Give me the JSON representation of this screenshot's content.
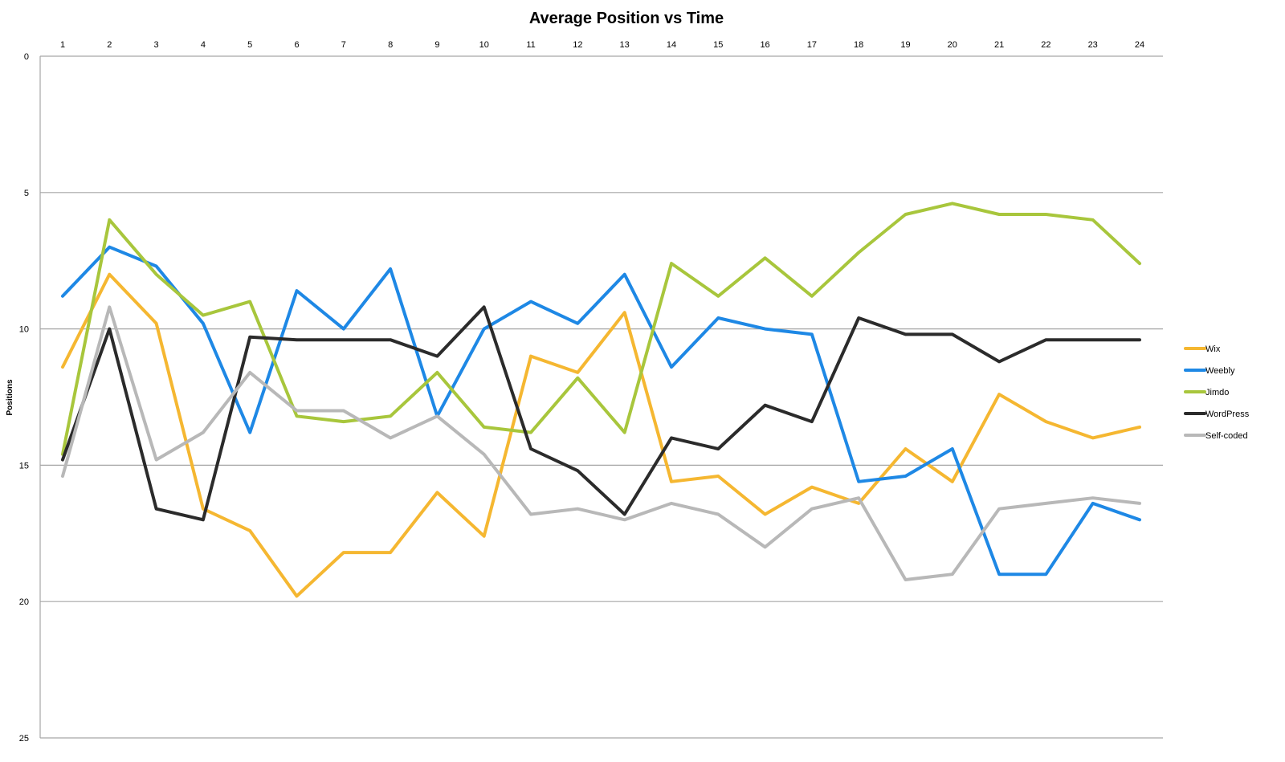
{
  "chart_data": {
    "type": "line",
    "title": "Average Position vs Time",
    "xlabel": "",
    "ylabel": "Positions",
    "x": [
      1,
      2,
      3,
      4,
      5,
      6,
      7,
      8,
      9,
      10,
      11,
      12,
      13,
      14,
      15,
      16,
      17,
      18,
      19,
      20,
      21,
      22,
      23,
      24
    ],
    "y_ticks": [
      0,
      5,
      10,
      15,
      20,
      25
    ],
    "ylim": [
      25,
      0
    ],
    "y_reversed": true,
    "x_axis_position": "top",
    "grid": true,
    "legend_position": "right",
    "series": [
      {
        "name": "Wix",
        "color": "#f5b731",
        "values": [
          11.4,
          8.0,
          9.8,
          16.6,
          17.4,
          19.8,
          18.2,
          18.2,
          16.0,
          17.6,
          11.0,
          11.6,
          9.4,
          15.6,
          15.4,
          16.8,
          15.8,
          16.4,
          14.4,
          15.6,
          12.4,
          13.4,
          14.0,
          13.6
        ]
      },
      {
        "name": "Weebly",
        "color": "#1e88e5",
        "values": [
          8.8,
          7.0,
          7.7,
          9.8,
          13.8,
          8.6,
          10.0,
          7.8,
          13.2,
          10.0,
          9.0,
          9.8,
          8.0,
          11.4,
          9.6,
          10.0,
          10.2,
          15.6,
          15.4,
          14.4,
          19.0,
          19.0,
          16.4,
          17.0
        ]
      },
      {
        "name": "Jimdo",
        "color": "#a8c63c",
        "values": [
          14.6,
          6.0,
          8.0,
          9.5,
          9.0,
          13.2,
          13.4,
          13.2,
          11.6,
          13.6,
          13.8,
          11.8,
          13.8,
          7.6,
          8.8,
          7.4,
          8.8,
          7.2,
          5.8,
          5.4,
          5.8,
          5.8,
          6.0,
          7.6
        ]
      },
      {
        "name": "WordPress",
        "color": "#2b2b2b",
        "values": [
          14.8,
          10.0,
          16.6,
          17.0,
          10.3,
          10.4,
          10.4,
          10.4,
          11.0,
          9.2,
          14.4,
          15.2,
          16.8,
          14.0,
          14.4,
          12.8,
          13.4,
          9.6,
          10.2,
          10.2,
          11.2,
          10.4,
          10.4,
          10.4
        ]
      },
      {
        "name": "Self-coded",
        "color": "#b8b8b8",
        "values": [
          15.4,
          9.2,
          14.8,
          13.8,
          11.6,
          13.0,
          13.0,
          14.0,
          13.2,
          14.6,
          16.8,
          16.6,
          17.0,
          16.4,
          16.8,
          18.0,
          16.6,
          16.2,
          19.2,
          19.0,
          16.6,
          16.4,
          16.2,
          16.4
        ]
      }
    ]
  }
}
